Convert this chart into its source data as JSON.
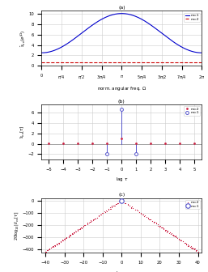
{
  "panel_a": {
    "m1_color": "#0000CC",
    "m2_color": "#CC0000",
    "ylabel": "$\\hat{s}_{\\nu\\nu}(e^{j\\Omega})$",
    "xlabel": "norm. angular freq. $\\Omega$",
    "subtitle": "(a)",
    "ylim": [
      0,
      10.5
    ],
    "xlim": [
      0,
      6.2832
    ],
    "yticks": [
      0,
      2,
      4,
      6,
      8,
      10
    ],
    "m1_amp_base": 2.5,
    "m1_amp_peak": 10.0,
    "m2_flat": 0.65,
    "legend_m1": "m=1",
    "legend_m2": "m=2"
  },
  "panel_b": {
    "m1_color": "#5555CC",
    "m2_color": "#CC2244",
    "ylabel": "$\\hat{s}_{\\nu\\nu}[\\tau]$",
    "xlabel": "lag $\\tau$",
    "subtitle": "(b)",
    "ylim": [
      -3,
      7.5
    ],
    "xlim": [
      -5.5,
      5.5
    ],
    "yticks": [
      -2,
      0,
      2,
      4,
      6
    ],
    "xticks": [
      -5,
      -4,
      -3,
      -2,
      -1,
      0,
      1,
      2,
      3,
      4,
      5
    ],
    "m1_taus": [
      -1,
      0,
      1
    ],
    "m1_vals": [
      -2.0,
      6.5,
      -2.0
    ],
    "m2_taus": [
      -5,
      -4,
      -3,
      -2,
      -1,
      0,
      1,
      2,
      3,
      4,
      5
    ],
    "m2_vals": [
      0.05,
      0.05,
      0.08,
      0.08,
      0.08,
      1.0,
      0.08,
      0.08,
      0.08,
      0.05,
      0.05
    ],
    "legend_m1": "m=1",
    "legend_m2": "m=2"
  },
  "panel_c": {
    "m1_color": "#5555CC",
    "m2_color": "#CC2244",
    "ylabel": "$20\\log_{10}|\\hat{s}_{\\nu\\nu}[\\tau]|$",
    "xlabel": "lag $\\tau$",
    "subtitle": "(c)",
    "ylim": [
      -430,
      20
    ],
    "xlim": [
      -42,
      42
    ],
    "yticks": [
      0,
      -100,
      -200,
      -300,
      -400
    ],
    "legend_m1": "m=1",
    "legend_m2": "m=2",
    "slope": 10.5
  },
  "bg_color": "#FFFFFF",
  "grid_color": "#CCCCCC"
}
